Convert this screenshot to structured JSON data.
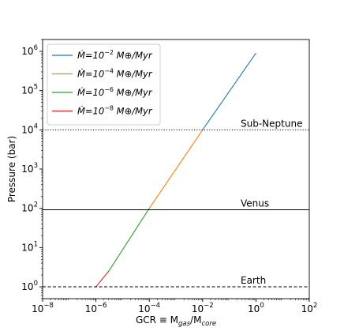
{
  "chart_data": {
    "type": "line",
    "xlabel_parts": {
      "main": "GCR ≡ M",
      "sub1": "gas",
      "mid": "/M",
      "sub2": "core"
    },
    "ylabel": "Pressure (bar)",
    "xscale": "log",
    "yscale": "log",
    "xlim": [
      1e-08,
      100
    ],
    "ylim": [
      0.5,
      2000000.0
    ],
    "x_ticks": [
      {
        "value": 1e-08,
        "base": "10",
        "exp": "−8"
      },
      {
        "value": 1e-06,
        "base": "10",
        "exp": "−6"
      },
      {
        "value": 0.0001,
        "base": "10",
        "exp": "−4"
      },
      {
        "value": 0.01,
        "base": "10",
        "exp": "−2"
      },
      {
        "value": 1,
        "base": "10",
        "exp": "0"
      },
      {
        "value": 100,
        "base": "10",
        "exp": "2"
      }
    ],
    "y_ticks": [
      {
        "value": 1,
        "base": "10",
        "exp": "0"
      },
      {
        "value": 10,
        "base": "10",
        "exp": "1"
      },
      {
        "value": 100,
        "base": "10",
        "exp": "2"
      },
      {
        "value": 1000,
        "base": "10",
        "exp": "3"
      },
      {
        "value": 10000,
        "base": "10",
        "exp": "4"
      },
      {
        "value": 100000,
        "base": "10",
        "exp": "5"
      },
      {
        "value": 1000000,
        "base": "10",
        "exp": "6"
      }
    ],
    "legend_placement": "top-left",
    "series": [
      {
        "name": "Ṁ=10⁻² M⊕/Myr",
        "legend": {
          "prefix": "Ṁ=10",
          "exp": "−2",
          "suffix": " M⊕/Myr"
        },
        "color": "#1f77b4",
        "x": [
          0.01,
          1.0
        ],
        "y": [
          10000,
          900000
        ]
      },
      {
        "name": "Ṁ=10⁻⁴ M⊕/Myr",
        "legend": {
          "prefix": "Ṁ=10",
          "exp": "−4",
          "suffix": " M⊕/Myr"
        },
        "color": "#ff7f0e",
        "x": [
          0.0001,
          0.01
        ],
        "y": [
          100,
          10000
        ]
      },
      {
        "name": "Ṁ=10⁻⁶ M⊕/Myr",
        "legend": {
          "prefix": "Ṁ=10",
          "exp": "−6",
          "suffix": " M⊕/Myr"
        },
        "color": "#2ca02c",
        "x": [
          3e-06,
          0.0001
        ],
        "y": [
          2.5,
          100
        ]
      },
      {
        "name": "Ṁ=10⁻⁸ M⊕/Myr",
        "legend": {
          "prefix": "Ṁ=10",
          "exp": "−8",
          "suffix": " M⊕/Myr"
        },
        "color": "#d62728",
        "x": [
          1e-06,
          3e-06
        ],
        "y": [
          1,
          2.5
        ]
      }
    ],
    "reference_lines": [
      {
        "label": "Sub-Neptune",
        "y": 10000,
        "style": "dotted"
      },
      {
        "label": "Venus",
        "y": 92,
        "style": "solid"
      },
      {
        "label": "Earth",
        "y": 1,
        "style": "dashed"
      }
    ],
    "grid": false
  }
}
